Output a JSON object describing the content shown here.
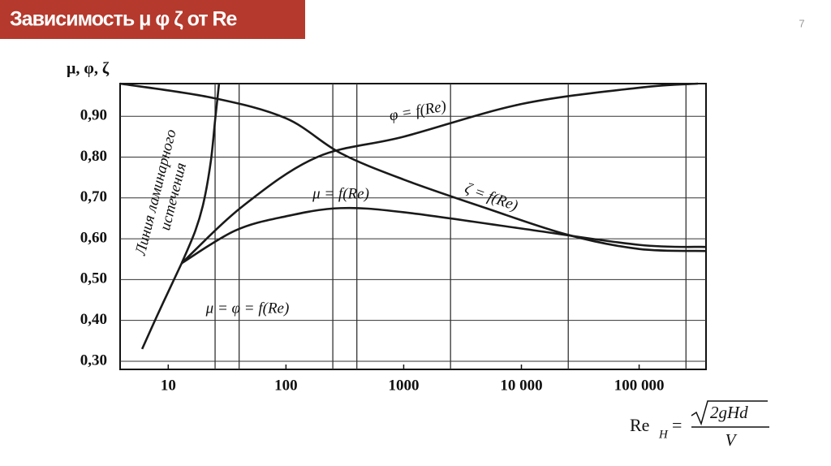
{
  "header": {
    "title": "Зависимость μ φ ζ от Re",
    "page_number": "7"
  },
  "chart_data": {
    "type": "line",
    "log_x": true,
    "grid": true,
    "y_label": "μ, φ, ζ",
    "x_label": {
      "name": "Re",
      "subscript": "H",
      "equals": "=",
      "numerator": "2gHd",
      "denominator": "V"
    },
    "xlim": [
      3.9,
      370000
    ],
    "ylim": [
      0.28,
      0.98
    ],
    "xticks": [
      10,
      100,
      1000,
      {
        "value": 10000,
        "label": "10 000"
      },
      {
        "value": 100000,
        "label": "100 000"
      }
    ],
    "x_grid_lines": [
      25,
      40,
      250,
      400,
      2500,
      25000,
      250000
    ],
    "yticks": [
      {
        "value": 0.3,
        "label": "0,30"
      },
      {
        "value": 0.4,
        "label": "0,40"
      },
      {
        "value": 0.5,
        "label": "0,50"
      },
      {
        "value": 0.6,
        "label": "0,60"
      },
      {
        "value": 0.7,
        "label": "0,70"
      },
      {
        "value": 0.8,
        "label": "0,80"
      },
      {
        "value": 0.9,
        "label": "0,90"
      }
    ],
    "series": [
      {
        "name": "μ = φ = f(Re)",
        "color": "#1a1a1a",
        "x": [
          6,
          8,
          10,
          13
        ],
        "values": [
          0.33,
          0.41,
          0.47,
          0.54
        ]
      },
      {
        "name": "Линия ламинарного истечения",
        "color": "#1a1a1a",
        "x": [
          13,
          17,
          20,
          23,
          25,
          27
        ],
        "values": [
          0.54,
          0.62,
          0.69,
          0.79,
          0.89,
          0.98
        ]
      },
      {
        "name": "φ = f(Re)",
        "color": "#1a1a1a",
        "x": [
          13,
          43,
          184,
          1000,
          10000,
          100000,
          316000
        ],
        "values": [
          0.54,
          0.68,
          0.8,
          0.85,
          0.93,
          0.97,
          0.98
        ]
      },
      {
        "name": "μ = f(Re)",
        "color": "#1a1a1a",
        "x": [
          13,
          37,
          100,
          290,
          1000,
          10000,
          100000,
          370000
        ],
        "values": [
          0.54,
          0.62,
          0.655,
          0.675,
          0.665,
          0.625,
          0.585,
          0.58
        ]
      },
      {
        "name": "ζ = f(Re)",
        "color": "#1a1a1a",
        "x": [
          3.9,
          24,
          100,
          290,
          1000,
          5000,
          24500,
          100000,
          370000
        ],
        "values": [
          0.98,
          0.945,
          0.895,
          0.81,
          0.745,
          0.675,
          0.61,
          0.575,
          0.57
        ]
      }
    ]
  }
}
